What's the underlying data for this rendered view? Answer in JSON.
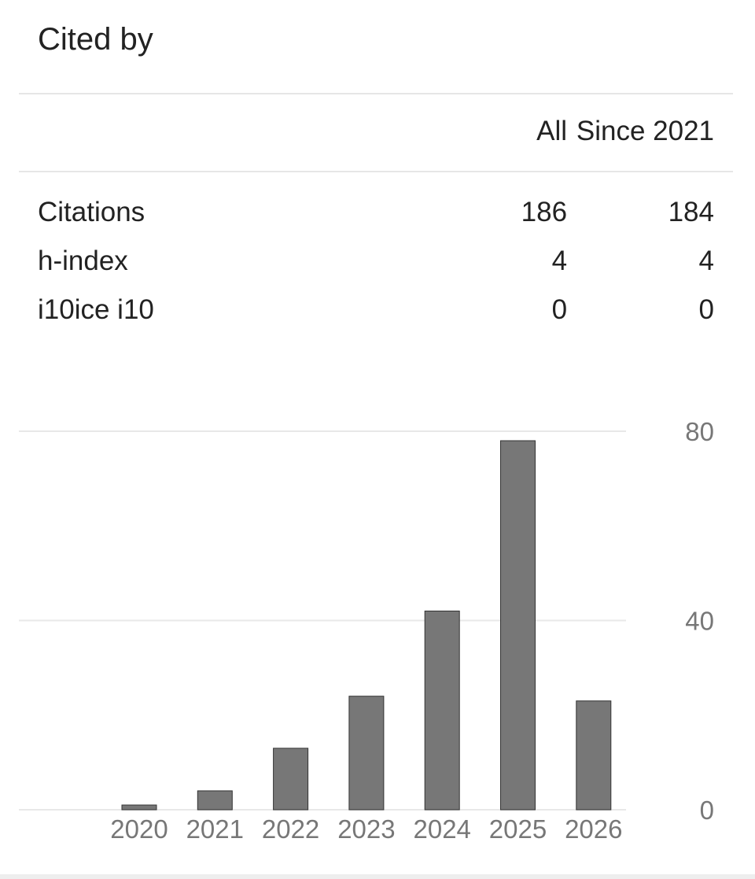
{
  "header": {
    "title": "Cited by"
  },
  "table": {
    "columns": [
      "",
      "All",
      "Since 2021"
    ],
    "rows": [
      {
        "label": "Citations",
        "all": "186",
        "since": "184"
      },
      {
        "label": "h-index",
        "all": "4",
        "since": "4"
      },
      {
        "label": "i10ice i10",
        "all": "0",
        "since": "0"
      }
    ]
  },
  "chart_data": {
    "type": "bar",
    "categories": [
      "2020",
      "2021",
      "2022",
      "2023",
      "2024",
      "2025",
      "2026"
    ],
    "values": [
      1,
      4,
      13,
      24,
      42,
      78,
      23
    ],
    "ylim": [
      0,
      80
    ],
    "yticks": [
      "0",
      "40",
      "80"
    ],
    "grid": true,
    "bar_color": "#777777",
    "axis": "right"
  }
}
